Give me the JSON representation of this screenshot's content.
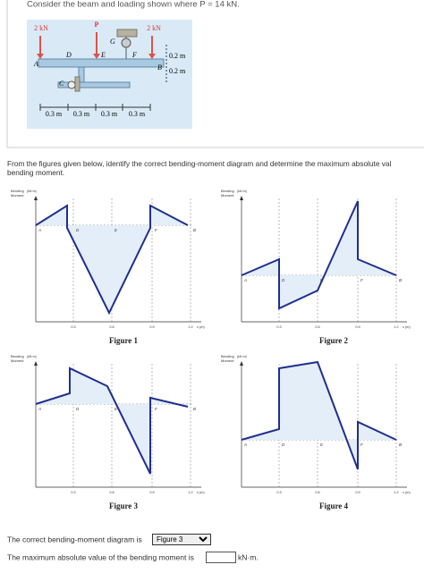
{
  "problem": {
    "text": "Consider the beam and loading shown where P = 14 kN."
  },
  "beam_figure": {
    "loads": [
      "2 kN",
      "P",
      "2 kN"
    ],
    "points": [
      "A",
      "B",
      "C",
      "D",
      "E",
      "F",
      "G"
    ],
    "heights": [
      "0.2 m",
      "0.2 m"
    ],
    "spans": [
      "0.3 m",
      "0.3 m",
      "0.3 m",
      "0.3 m"
    ]
  },
  "instruction": {
    "lines": [
      "From the figures given below, identify the correct bending-moment diagram and determine the maximum absolute val",
      "bending moment."
    ]
  },
  "diagram_labels": {
    "axis_title": [
      "Bending",
      "Moment"
    ],
    "axis_unit": "(kN·m)",
    "points": [
      "A",
      "D",
      "E",
      "F",
      "B"
    ],
    "xticks": [
      "0.3",
      "0.6",
      "0.9",
      "1.2"
    ],
    "x_axis_label": "x (m)"
  },
  "figures": [
    {
      "caption": "Figure 1"
    },
    {
      "caption": "Figure 2"
    },
    {
      "caption": "Figure 3"
    },
    {
      "caption": "Figure 4"
    }
  ],
  "answers": {
    "diagram_prompt": "The correct bending-moment diagram is",
    "diagram_choice": "Figure 3",
    "moment_prompt": "The maximum absolute value of the bending moment is",
    "moment_unit": "kN·m."
  }
}
